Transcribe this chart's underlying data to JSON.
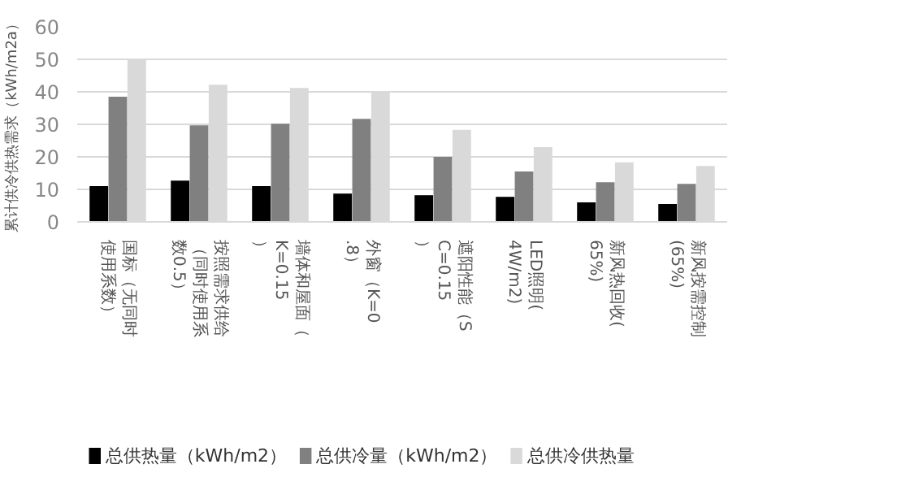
{
  "chart_data": {
    "type": "bar",
    "ylabel": "累计供冷供热需求（kWh/m2a）",
    "categories": [
      "国标（无同时使用系数）",
      "按照需求供给（同时使用系数0.5）",
      "墙体和屋面（K=0.15）",
      "外窗（K=0.8）",
      "遮阳性能（SC=0.15）",
      "LED照明(4W/m2)",
      "新风热回收(65%)",
      "新风按需控制(65%)"
    ],
    "series": [
      {
        "name": "总供热量（kWh/m2）",
        "color": "#000000",
        "values": [
          11,
          12.7,
          11,
          8.7,
          8.2,
          7.7,
          6,
          5.5
        ]
      },
      {
        "name": "总供冷量（kWh/m2）",
        "color": "#808080",
        "values": [
          38.5,
          29.7,
          30.2,
          31.7,
          20,
          15.5,
          12.2,
          11.7
        ]
      },
      {
        "name": "总供冷供热量",
        "color": "#d9d9d9",
        "values": [
          50,
          42.2,
          41.2,
          40,
          28.3,
          23,
          18.3,
          17.2
        ]
      }
    ],
    "ylim": [
      0,
      60
    ],
    "yticks": [
      0,
      10,
      20,
      30,
      40,
      50,
      60
    ],
    "grid": "y",
    "legend": "bottom"
  }
}
